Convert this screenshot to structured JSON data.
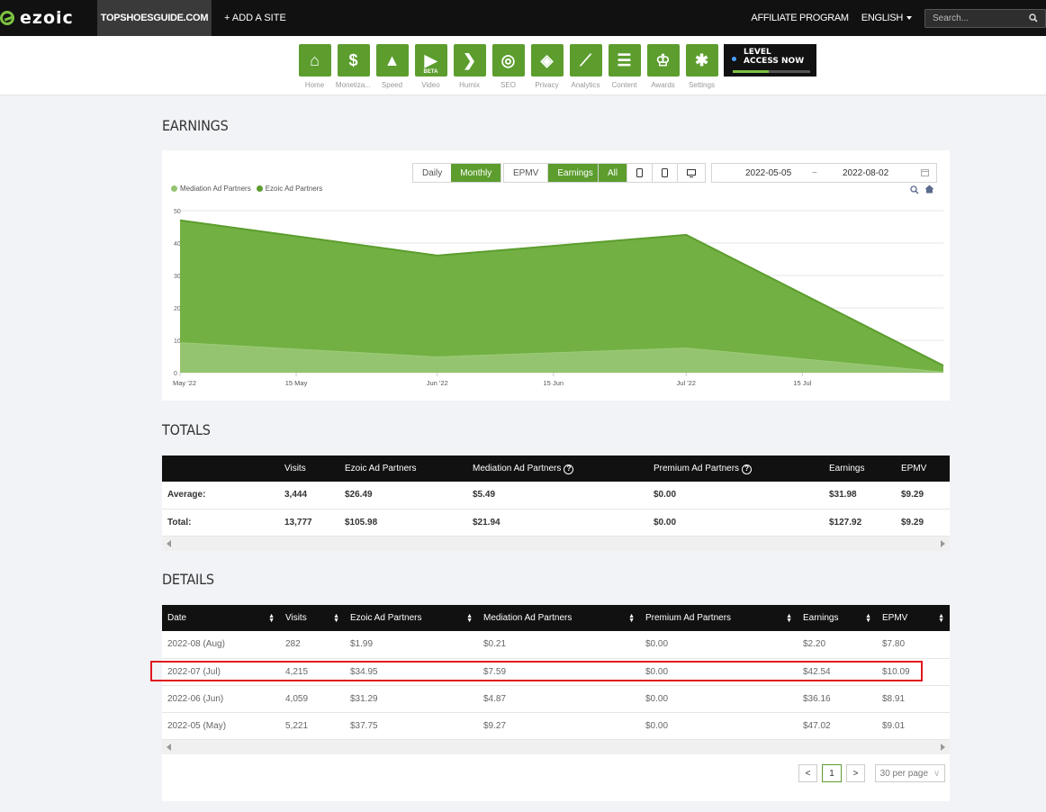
{
  "topbar": {
    "brand": "ezoic",
    "site": "TOPSHOESGUIDE.COM",
    "add_site": "+ ADD A SITE",
    "affiliate": "AFFILIATE PROGRAM",
    "language": "ENGLISH",
    "search_placeholder": "Search..."
  },
  "nav": {
    "items": [
      {
        "label": "Home",
        "icon": "home-icon"
      },
      {
        "label": "Monetiza...",
        "icon": "dollar-icon"
      },
      {
        "label": "Speed",
        "icon": "rocket-icon"
      },
      {
        "label": "Video",
        "icon": "video-icon",
        "badge": "BETA"
      },
      {
        "label": "Humix",
        "icon": "chevron-right-icon"
      },
      {
        "label": "SEO",
        "icon": "magnifier-icon"
      },
      {
        "label": "Privacy",
        "icon": "shield-icon"
      },
      {
        "label": "Analytics",
        "icon": "line-chart-icon"
      },
      {
        "label": "Content",
        "icon": "document-icon"
      },
      {
        "label": "Awards",
        "icon": "trophy-icon"
      },
      {
        "label": "Settings",
        "icon": "gear-icon"
      }
    ],
    "level": {
      "line1": "LEVEL",
      "line2": "ACCESS NOW"
    }
  },
  "earnings": {
    "heading": "EARNINGS",
    "controls": {
      "daily": "Daily",
      "monthly": "Monthly",
      "epmv": "EPMV",
      "earnings": "Earnings",
      "all": "All"
    },
    "date_from": "2022-05-05",
    "date_sep": "~",
    "date_to": "2022-08-02",
    "legend": [
      "Mediation Ad Partners",
      "Ezoic Ad Partners"
    ]
  },
  "chart_data": {
    "type": "area",
    "stacked": true,
    "x": [
      "2022-05-01",
      "2022-06-01",
      "2022-07-01",
      "2022-08-01"
    ],
    "x_tick_labels": [
      "May '22",
      "15 May",
      "Jun '22",
      "15 Jun",
      "Jul '22",
      "15 Jul"
    ],
    "y_ticks": [
      0,
      10,
      20,
      30,
      40,
      50
    ],
    "ylim": [
      0,
      50
    ],
    "series": [
      {
        "name": "Mediation Ad Partners",
        "values": [
          9.27,
          4.87,
          7.59,
          0.21
        ],
        "color": "#94c470"
      },
      {
        "name": "Ezoic Ad Partners",
        "values": [
          37.75,
          31.29,
          34.95,
          1.99
        ],
        "color": "#6aab3c"
      }
    ],
    "grid": true,
    "legend_position": "top-left"
  },
  "totals": {
    "heading": "TOTALS",
    "columns": [
      "",
      "Visits",
      "Ezoic Ad Partners",
      "Mediation Ad Partners",
      "Premium Ad Partners",
      "Earnings",
      "EPMV"
    ],
    "rows": [
      [
        "Average:",
        "3,444",
        "$26.49",
        "$5.49",
        "$0.00",
        "$31.98",
        "$9.29"
      ],
      [
        "Total:",
        "13,777",
        "$105.98",
        "$21.94",
        "$0.00",
        "$127.92",
        "$9.29"
      ]
    ]
  },
  "details": {
    "heading": "DETAILS",
    "columns": [
      "Date",
      "Visits",
      "Ezoic Ad Partners",
      "Mediation Ad Partners",
      "Premium Ad Partners",
      "Earnings",
      "EPMV"
    ],
    "rows": [
      [
        "2022-08 (Aug)",
        "282",
        "$1.99",
        "$0.21",
        "$0.00",
        "$2.20",
        "$7.80"
      ],
      [
        "2022-07 (Jul)",
        "4,215",
        "$34.95",
        "$7.59",
        "$0.00",
        "$42.54",
        "$10.09"
      ],
      [
        "2022-06 (Jun)",
        "4,059",
        "$31.29",
        "$4.87",
        "$0.00",
        "$36.16",
        "$8.91"
      ],
      [
        "2022-05 (May)",
        "5,221",
        "$37.75",
        "$9.27",
        "$0.00",
        "$47.02",
        "$9.01"
      ]
    ],
    "pagination": {
      "prev": "<",
      "page": "1",
      "next": ">",
      "per_page": "30 per page"
    }
  },
  "colors": {
    "accent": "#5c9d2e",
    "highlight": "#e0191e"
  }
}
